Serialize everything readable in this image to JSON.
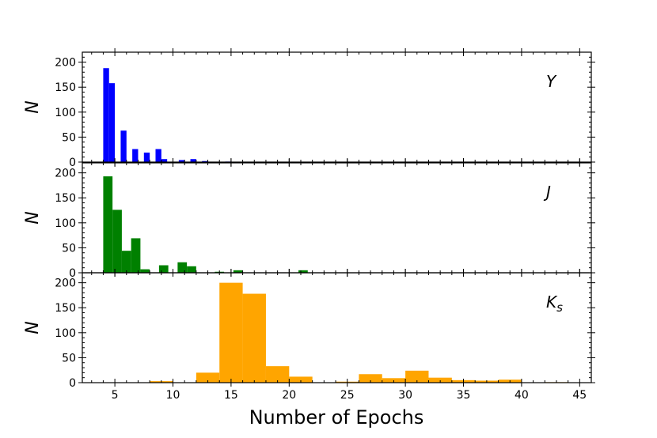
{
  "chart_data": [
    {
      "type": "bar",
      "panel_label": "Y",
      "color": "#0000ff",
      "bin_width": 0.5,
      "bins": [
        {
          "x": 4.0,
          "count": 188
        },
        {
          "x": 4.5,
          "count": 158
        },
        {
          "x": 5.5,
          "count": 63
        },
        {
          "x": 6.5,
          "count": 26
        },
        {
          "x": 7.5,
          "count": 19
        },
        {
          "x": 8.5,
          "count": 26
        },
        {
          "x": 9.0,
          "count": 6
        },
        {
          "x": 10.5,
          "count": 4
        },
        {
          "x": 11.5,
          "count": 6
        },
        {
          "x": 12.5,
          "count": 2
        },
        {
          "x": 14.5,
          "count": 1
        }
      ],
      "ylabel": "N",
      "xlim": [
        2.2,
        46
      ],
      "ylim": [
        0,
        220
      ],
      "yticks": [
        0,
        50,
        100,
        150,
        200
      ]
    },
    {
      "type": "bar",
      "panel_label": "J",
      "color": "#008000",
      "bin_width": 0.8,
      "bins": [
        {
          "x": 4.0,
          "count": 193
        },
        {
          "x": 4.8,
          "count": 126
        },
        {
          "x": 5.6,
          "count": 44
        },
        {
          "x": 6.4,
          "count": 69
        },
        {
          "x": 7.2,
          "count": 7
        },
        {
          "x": 8.8,
          "count": 15
        },
        {
          "x": 10.4,
          "count": 21
        },
        {
          "x": 11.2,
          "count": 13
        },
        {
          "x": 13.6,
          "count": 2
        },
        {
          "x": 15.2,
          "count": 5
        },
        {
          "x": 20.8,
          "count": 5
        }
      ],
      "ylabel": "N",
      "xlim": [
        2.2,
        46
      ],
      "ylim": [
        0,
        220
      ],
      "yticks": [
        0,
        50,
        100,
        150,
        200
      ]
    },
    {
      "type": "bar",
      "panel_label": "Ks",
      "color": "#ffa500",
      "bin_width": 2,
      "bins": [
        {
          "x": 8,
          "count": 3
        },
        {
          "x": 12,
          "count": 20
        },
        {
          "x": 14,
          "count": 200
        },
        {
          "x": 16,
          "count": 178
        },
        {
          "x": 18,
          "count": 33
        },
        {
          "x": 20,
          "count": 12
        },
        {
          "x": 24,
          "count": 2
        },
        {
          "x": 26,
          "count": 17
        },
        {
          "x": 28,
          "count": 9
        },
        {
          "x": 30,
          "count": 24
        },
        {
          "x": 32,
          "count": 10
        },
        {
          "x": 34,
          "count": 5
        },
        {
          "x": 36,
          "count": 4
        },
        {
          "x": 38,
          "count": 6
        },
        {
          "x": 42,
          "count": 1
        }
      ],
      "ylabel": "N",
      "xlim": [
        2.2,
        46
      ],
      "ylim": [
        0,
        220
      ],
      "yticks": [
        0,
        50,
        100,
        150,
        200
      ]
    }
  ],
  "xlabel": "Number of Epochs",
  "xticks": [
    5,
    10,
    15,
    20,
    25,
    30,
    35,
    40,
    45
  ],
  "grid": false,
  "legend": "none"
}
